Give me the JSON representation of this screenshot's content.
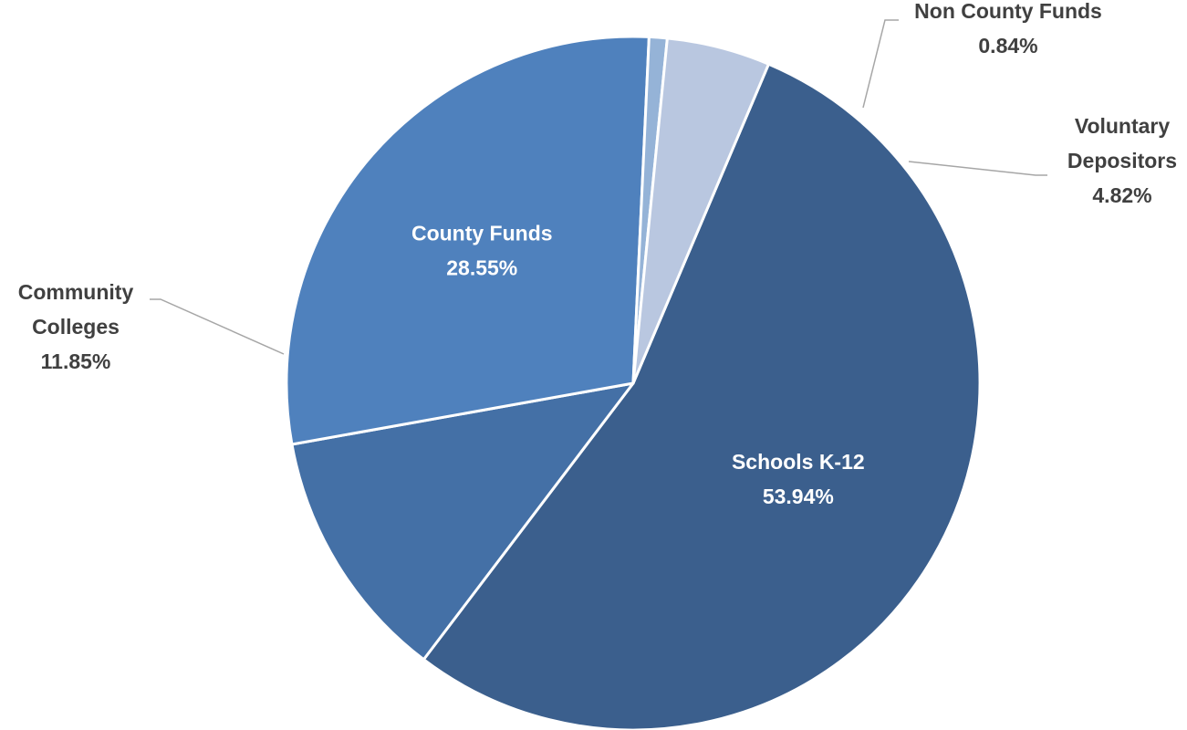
{
  "chart_data": {
    "type": "pie",
    "slices": [
      {
        "name": "Schools K-12",
        "value": 53.94,
        "display": "53.94%",
        "color": "#3b5f8d",
        "label_lines": [
          "Schools K-12"
        ]
      },
      {
        "name": "Community Colleges",
        "value": 11.85,
        "display": "11.85%",
        "color": "#4470a6",
        "label_lines": [
          "Community",
          "Colleges"
        ]
      },
      {
        "name": "County Funds",
        "value": 28.55,
        "display": "28.55%",
        "color": "#4f81bd",
        "label_lines": [
          "County Funds"
        ]
      },
      {
        "name": "Non County Funds",
        "value": 0.84,
        "display": "0.84%",
        "color": "#95b3d7",
        "label_lines": [
          "Non County Funds"
        ]
      },
      {
        "name": "Voluntary Depositors",
        "value": 4.82,
        "display": "4.82%",
        "color": "#b9c7e0",
        "label_lines": [
          "Voluntary",
          "Depositors"
        ]
      }
    ],
    "legend": "none",
    "label_style": "category name and percentage on each slice, leader lines for outside labels"
  }
}
